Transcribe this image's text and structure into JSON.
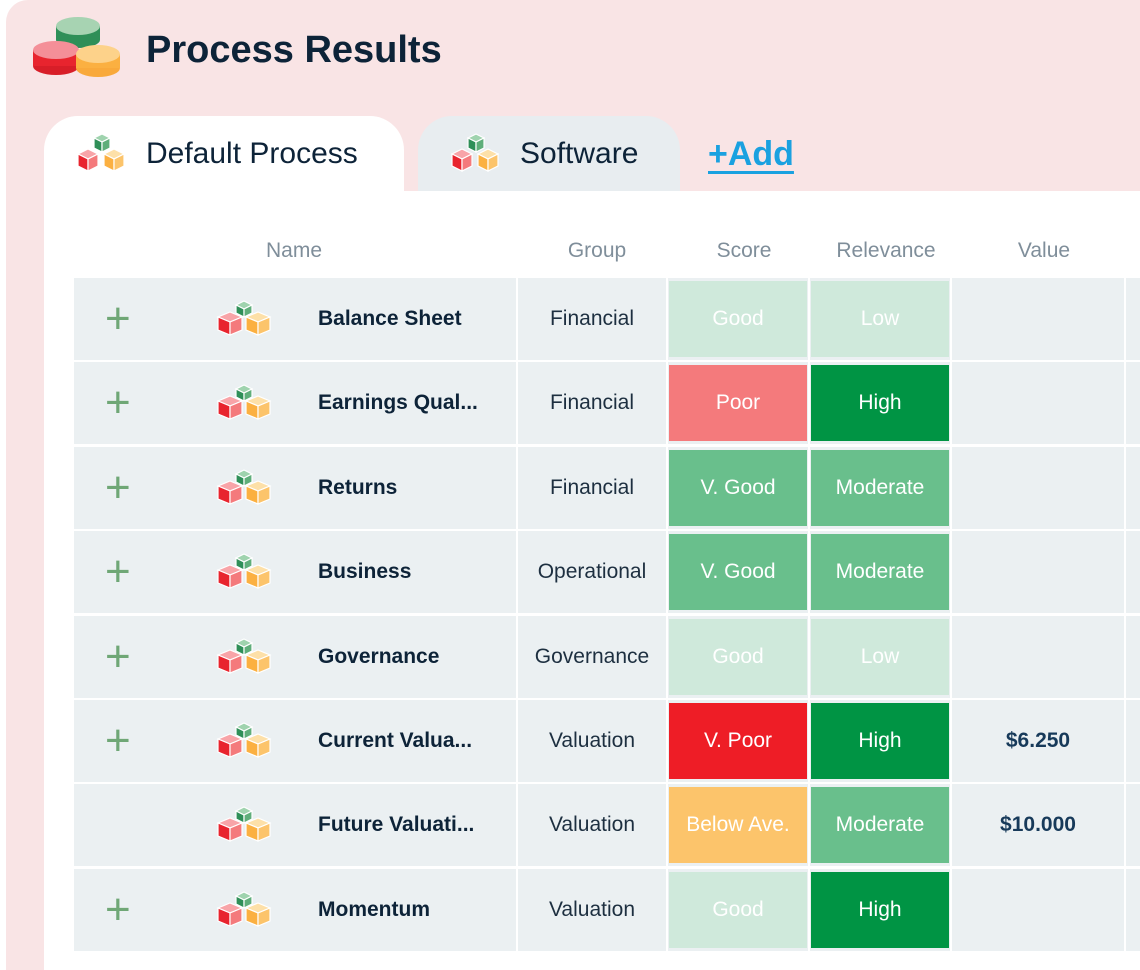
{
  "header": {
    "title": "Process Results",
    "logo_icon": "stacked-coins-icon"
  },
  "tabs": [
    {
      "label": "Default Process",
      "icon": "cubes-icon",
      "active": true
    },
    {
      "label": "Software",
      "icon": "cubes-icon",
      "active": false
    }
  ],
  "add_link": "+Add",
  "columns": {
    "name": "Name",
    "group": "Group",
    "score": "Score",
    "relevance": "Relevance",
    "value": "Value"
  },
  "colors": {
    "good": "#cfe9db",
    "poor": "#f47a7c",
    "very_good": "#69bf8c",
    "very_poor": "#ee1d26",
    "below_average": "#fcc46b",
    "low": "#cfe9db",
    "moderate": "#69bf8c",
    "high": "#009444",
    "plus": "#6fa776"
  },
  "rows": [
    {
      "has_add": true,
      "name": "Balance Sheet",
      "group": "Financial",
      "score": "Good",
      "score_color": "#cfe9db",
      "relevance": "Low",
      "relevance_color": "#cfe9db",
      "value": ""
    },
    {
      "has_add": true,
      "name": "Earnings Qual...",
      "group": "Financial",
      "score": "Poor",
      "score_color": "#f47a7c",
      "relevance": "High",
      "relevance_color": "#009444",
      "value": ""
    },
    {
      "has_add": true,
      "name": "Returns",
      "group": "Financial",
      "score": "V. Good",
      "score_color": "#69bf8c",
      "relevance": "Moderate",
      "relevance_color": "#69bf8c",
      "value": ""
    },
    {
      "has_add": true,
      "name": "Business",
      "group": "Operational",
      "score": "V. Good",
      "score_color": "#69bf8c",
      "relevance": "Moderate",
      "relevance_color": "#69bf8c",
      "value": ""
    },
    {
      "has_add": true,
      "name": "Governance",
      "group": "Governance",
      "score": "Good",
      "score_color": "#cfe9db",
      "relevance": "Low",
      "relevance_color": "#cfe9db",
      "value": ""
    },
    {
      "has_add": true,
      "name": "Current Valua...",
      "group": "Valuation",
      "score": "V. Poor",
      "score_color": "#ee1d26",
      "relevance": "High",
      "relevance_color": "#009444",
      "value": "$6.250"
    },
    {
      "has_add": false,
      "name": "Future Valuati...",
      "group": "Valuation",
      "score": "Below Ave.",
      "score_color": "#fcc46b",
      "relevance": "Moderate",
      "relevance_color": "#69bf8c",
      "value": "$10.000"
    },
    {
      "has_add": true,
      "name": "Momentum",
      "group": "Valuation",
      "score": "Good",
      "score_color": "#cfe9db",
      "relevance": "High",
      "relevance_color": "#009444",
      "value": ""
    }
  ]
}
